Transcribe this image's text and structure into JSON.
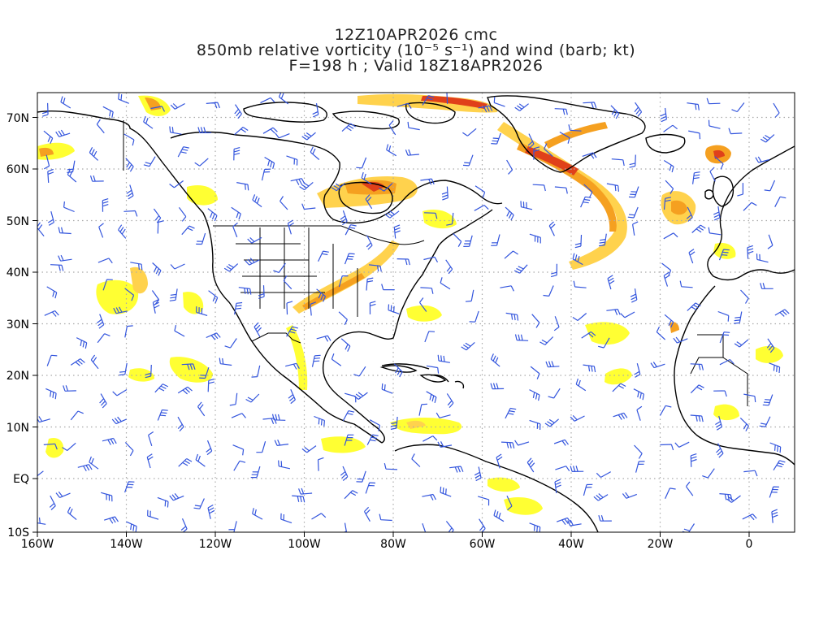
{
  "title": {
    "line1": "12Z10APR2026 cmc",
    "line2": "850mb relative vorticity (10⁻⁵ s⁻¹) and wind (barb; kt)",
    "line3": "F=198 h ; Valid 18Z18APR2026"
  },
  "axes": {
    "lat_ticks": [
      "70N",
      "60N",
      "50N",
      "40N",
      "30N",
      "20N",
      "10N",
      "EQ",
      "10S"
    ],
    "lon_ticks": [
      "160W",
      "140W",
      "120W",
      "100W",
      "80W",
      "60W",
      "40W",
      "20W",
      "0"
    ],
    "lon_range": [
      -160,
      10
    ],
    "lat_range": [
      -10,
      75
    ],
    "grid": "dotted"
  },
  "colors": {
    "vort_low": "#ffff33",
    "vort_mid": "#ffd24d",
    "vort_high": "#f5a020",
    "vort_max": "#e0401a",
    "barb": "#3355dd",
    "coast": "#000000",
    "grid": "#aaaaaa"
  }
}
